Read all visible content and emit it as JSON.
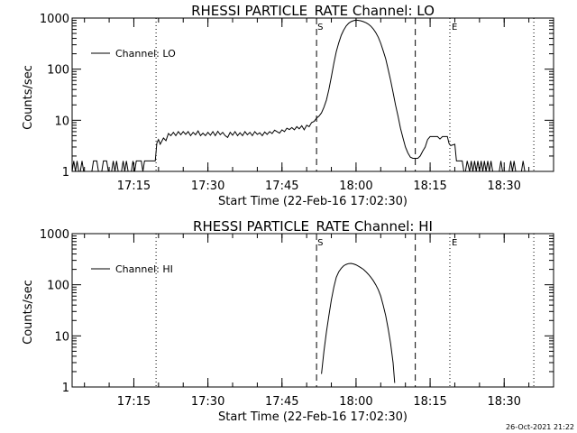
{
  "footer": {
    "timestamp": "26-Oct-2021 21:22"
  },
  "chart_data": [
    {
      "type": "line",
      "title": "RHESSI PARTICLE_RATE Channel: LO",
      "xlabel": "Start Time (22-Feb-16 17:02:30)",
      "ylabel": "Counts/sec",
      "yscale": "log",
      "xlim": [
        "17:02:30",
        "18:40:00"
      ],
      "ylim": [
        1,
        1000
      ],
      "x_ticks": [
        "17:15",
        "17:30",
        "17:45",
        "18:00",
        "18:15",
        "18:30"
      ],
      "y_ticks": [
        "1",
        "10",
        "100",
        "1000"
      ],
      "legend": {
        "position": "top-left",
        "entries": [
          "Channel: LO"
        ]
      },
      "markers": {
        "start_label": "S",
        "end_label": "E"
      },
      "vlines": [
        {
          "time": "17:19:30",
          "style": "dotted"
        },
        {
          "time": "17:52:00",
          "style": "dashed"
        },
        {
          "time": "18:12:00",
          "style": "dashed"
        },
        {
          "time": "18:19:00",
          "style": "dotted"
        },
        {
          "time": "18:36:00",
          "style": "dotted"
        }
      ],
      "series": [
        {
          "name": "Channel: LO",
          "points": [
            [
              "17:02:30",
              1
            ],
            [
              "17:02:50",
              1.6
            ],
            [
              "17:03:10",
              1
            ],
            [
              "17:03:30",
              1.6
            ],
            [
              "17:03:50",
              1
            ],
            [
              "17:04:10",
              1
            ],
            [
              "17:04:30",
              1.6
            ],
            [
              "17:04:50",
              1
            ],
            [
              "17:05:10",
              1
            ],
            [
              "17:06:30",
              1
            ],
            [
              "17:06:50",
              1.6
            ],
            [
              "17:07:30",
              1.6
            ],
            [
              "17:07:50",
              1
            ],
            [
              "17:08:30",
              1
            ],
            [
              "17:08:50",
              1.6
            ],
            [
              "17:09:30",
              1.6
            ],
            [
              "17:09:50",
              1
            ],
            [
              "17:10:30",
              1
            ],
            [
              "17:10:50",
              1.6
            ],
            [
              "17:11:10",
              1
            ],
            [
              "17:11:30",
              1.6
            ],
            [
              "17:11:50",
              1
            ],
            [
              "17:12:30",
              1
            ],
            [
              "17:12:50",
              1.6
            ],
            [
              "17:13:10",
              1
            ],
            [
              "17:13:30",
              1.6
            ],
            [
              "17:13:50",
              1
            ],
            [
              "17:14:30",
              1
            ],
            [
              "17:14:50",
              1.6
            ],
            [
              "17:15:10",
              1
            ],
            [
              "17:15:30",
              1.6
            ],
            [
              "17:16:30",
              1.6
            ],
            [
              "17:16:50",
              1
            ],
            [
              "17:17:10",
              1.6
            ],
            [
              "17:19:20",
              1.6
            ],
            [
              "17:19:40",
              3.6
            ],
            [
              "17:20:00",
              4.2
            ],
            [
              "17:20:20",
              3.4
            ],
            [
              "17:21:00",
              4.5
            ],
            [
              "17:21:30",
              4
            ],
            [
              "17:22:00",
              5.5
            ],
            [
              "17:22:30",
              5
            ],
            [
              "17:23:00",
              5.8
            ],
            [
              "17:23:30",
              5
            ],
            [
              "17:24:00",
              6
            ],
            [
              "17:24:30",
              5.2
            ],
            [
              "17:25:00",
              6
            ],
            [
              "17:25:30",
              5.3
            ],
            [
              "17:26:00",
              6
            ],
            [
              "17:26:30",
              5
            ],
            [
              "17:27:00",
              5.8
            ],
            [
              "17:27:30",
              5.2
            ],
            [
              "17:28:00",
              6.2
            ],
            [
              "17:28:30",
              5
            ],
            [
              "17:29:00",
              5.6
            ],
            [
              "17:29:30",
              5
            ],
            [
              "17:30:00",
              5.8
            ],
            [
              "17:30:30",
              5.1
            ],
            [
              "17:31:00",
              6
            ],
            [
              "17:31:30",
              5
            ],
            [
              "17:32:00",
              6.1
            ],
            [
              "17:32:30",
              5.2
            ],
            [
              "17:33:00",
              5.8
            ],
            [
              "17:33:30",
              5
            ],
            [
              "17:34:00",
              4.6
            ],
            [
              "17:34:30",
              5.8
            ],
            [
              "17:35:00",
              5.1
            ],
            [
              "17:35:30",
              6
            ],
            [
              "17:36:00",
              5
            ],
            [
              "17:36:30",
              5.7
            ],
            [
              "17:37:00",
              5
            ],
            [
              "17:37:30",
              6
            ],
            [
              "17:38:00",
              5.2
            ],
            [
              "17:38:30",
              5.8
            ],
            [
              "17:39:00",
              5
            ],
            [
              "17:39:30",
              6
            ],
            [
              "17:40:00",
              5.3
            ],
            [
              "17:40:30",
              5.7
            ],
            [
              "17:41:00",
              5
            ],
            [
              "17:41:30",
              5.9
            ],
            [
              "17:42:00",
              5.3
            ],
            [
              "17:42:30",
              6
            ],
            [
              "17:43:00",
              5.5
            ],
            [
              "17:43:30",
              6.4
            ],
            [
              "17:44:00",
              6
            ],
            [
              "17:44:30",
              5.6
            ],
            [
              "17:45:00",
              6.5
            ],
            [
              "17:45:30",
              6
            ],
            [
              "17:46:00",
              7
            ],
            [
              "17:46:30",
              6.6
            ],
            [
              "17:47:00",
              7.2
            ],
            [
              "17:47:30",
              6.5
            ],
            [
              "17:48:00",
              7.5
            ],
            [
              "17:48:30",
              6.8
            ],
            [
              "17:49:00",
              7.8
            ],
            [
              "17:49:30",
              6.5
            ],
            [
              "17:50:00",
              8
            ],
            [
              "17:50:30",
              7.5
            ],
            [
              "17:51:00",
              9
            ],
            [
              "17:51:30",
              9.5
            ],
            [
              "17:52:00",
              11
            ],
            [
              "17:52:30",
              12
            ],
            [
              "17:53:00",
              14
            ],
            [
              "17:53:30",
              18
            ],
            [
              "17:54:00",
              25
            ],
            [
              "17:54:30",
              40
            ],
            [
              "17:55:00",
              70
            ],
            [
              "17:55:30",
              130
            ],
            [
              "17:56:00",
              220
            ],
            [
              "17:56:30",
              330
            ],
            [
              "17:57:00",
              460
            ],
            [
              "17:57:30",
              580
            ],
            [
              "17:58:00",
              700
            ],
            [
              "17:58:30",
              790
            ],
            [
              "17:59:00",
              850
            ],
            [
              "17:59:30",
              890
            ],
            [
              "18:00:00",
              910
            ],
            [
              "18:00:30",
              900
            ],
            [
              "18:01:00",
              880
            ],
            [
              "18:01:30",
              850
            ],
            [
              "18:02:00",
              810
            ],
            [
              "18:02:30",
              760
            ],
            [
              "18:03:00",
              690
            ],
            [
              "18:03:30",
              610
            ],
            [
              "18:04:00",
              520
            ],
            [
              "18:04:30",
              420
            ],
            [
              "18:05:00",
              320
            ],
            [
              "18:05:30",
              230
            ],
            [
              "18:06:00",
              160
            ],
            [
              "18:06:30",
              100
            ],
            [
              "18:07:00",
              60
            ],
            [
              "18:07:30",
              35
            ],
            [
              "18:08:00",
              20
            ],
            [
              "18:08:30",
              12
            ],
            [
              "18:09:00",
              7
            ],
            [
              "18:09:30",
              4.5
            ],
            [
              "18:10:00",
              3
            ],
            [
              "18:10:30",
              2.3
            ],
            [
              "18:11:00",
              1.9
            ],
            [
              "18:11:30",
              1.8
            ],
            [
              "18:12:30",
              1.8
            ],
            [
              "18:13:00",
              2
            ],
            [
              "18:13:30",
              2.5
            ],
            [
              "18:14:00",
              3
            ],
            [
              "18:14:30",
              4.2
            ],
            [
              "18:15:00",
              4.8
            ],
            [
              "18:16:30",
              4.8
            ],
            [
              "18:17:00",
              4.3
            ],
            [
              "18:17:30",
              4.8
            ],
            [
              "18:18:30",
              4.8
            ],
            [
              "18:18:50",
              3.5
            ],
            [
              "18:19:10",
              3.2
            ],
            [
              "18:20:00",
              3.4
            ],
            [
              "18:20:20",
              1.6
            ],
            [
              "18:21:30",
              1.6
            ],
            [
              "18:21:50",
              1
            ],
            [
              "18:22:10",
              1
            ],
            [
              "18:22:30",
              1.6
            ],
            [
              "18:23:00",
              1
            ],
            [
              "18:23:20",
              1.6
            ],
            [
              "18:23:40",
              1
            ],
            [
              "18:24:00",
              1.6
            ],
            [
              "18:24:20",
              1
            ],
            [
              "18:24:40",
              1.6
            ],
            [
              "18:25:00",
              1
            ],
            [
              "18:25:20",
              1.6
            ],
            [
              "18:25:40",
              1
            ],
            [
              "18:26:00",
              1.6
            ],
            [
              "18:26:20",
              1
            ],
            [
              "18:26:40",
              1.6
            ],
            [
              "18:27:00",
              1
            ],
            [
              "18:27:20",
              1.6
            ],
            [
              "18:27:40",
              1
            ],
            [
              "18:28:00",
              1
            ],
            [
              "18:29:00",
              1
            ],
            [
              "18:29:20",
              1.6
            ],
            [
              "18:29:40",
              1
            ],
            [
              "18:30:00",
              1
            ],
            [
              "18:31:00",
              1
            ],
            [
              "18:31:20",
              1.6
            ],
            [
              "18:31:40",
              1
            ],
            [
              "18:32:00",
              1.6
            ],
            [
              "18:32:20",
              1
            ],
            [
              "18:33:30",
              1
            ],
            [
              "18:33:50",
              1.6
            ],
            [
              "18:34:10",
              1
            ]
          ]
        }
      ]
    },
    {
      "type": "line",
      "title": "RHESSI PARTICLE_RATE Channel: HI",
      "xlabel": "Start Time (22-Feb-16 17:02:30)",
      "ylabel": "Counts/sec",
      "yscale": "log",
      "xlim": [
        "17:02:30",
        "18:40:00"
      ],
      "ylim": [
        1,
        1000
      ],
      "x_ticks": [
        "17:15",
        "17:30",
        "17:45",
        "18:00",
        "18:15",
        "18:30"
      ],
      "y_ticks": [
        "1",
        "10",
        "100",
        "1000"
      ],
      "legend": {
        "position": "top-left",
        "entries": [
          "Channel: HI"
        ]
      },
      "markers": {
        "start_label": "S",
        "end_label": "E"
      },
      "vlines": [
        {
          "time": "17:19:30",
          "style": "dotted"
        },
        {
          "time": "17:52:00",
          "style": "dashed"
        },
        {
          "time": "18:12:00",
          "style": "dashed"
        },
        {
          "time": "18:19:00",
          "style": "dotted"
        },
        {
          "time": "18:36:00",
          "style": "dotted"
        }
      ],
      "series": [
        {
          "name": "Channel: HI",
          "points": [
            [
              "17:53:00",
              1.8
            ],
            [
              "17:53:30",
              5
            ],
            [
              "17:54:00",
              12
            ],
            [
              "17:54:30",
              25
            ],
            [
              "17:55:00",
              50
            ],
            [
              "17:55:30",
              90
            ],
            [
              "17:56:00",
              140
            ],
            [
              "17:56:30",
              180
            ],
            [
              "17:57:00",
              210
            ],
            [
              "17:57:30",
              235
            ],
            [
              "17:58:00",
              250
            ],
            [
              "17:58:30",
              260
            ],
            [
              "17:59:00",
              262
            ],
            [
              "17:59:30",
              255
            ],
            [
              "18:00:00",
              245
            ],
            [
              "18:00:30",
              230
            ],
            [
              "18:01:00",
              215
            ],
            [
              "18:01:30",
              200
            ],
            [
              "18:02:00",
              180
            ],
            [
              "18:02:30",
              160
            ],
            [
              "18:03:00",
              140
            ],
            [
              "18:03:30",
              120
            ],
            [
              "18:04:00",
              100
            ],
            [
              "18:04:30",
              80
            ],
            [
              "18:05:00",
              60
            ],
            [
              "18:05:30",
              40
            ],
            [
              "18:06:00",
              25
            ],
            [
              "18:06:30",
              14
            ],
            [
              "18:07:00",
              7
            ],
            [
              "18:07:30",
              3
            ],
            [
              "18:07:50",
              1.2
            ]
          ]
        }
      ]
    }
  ]
}
